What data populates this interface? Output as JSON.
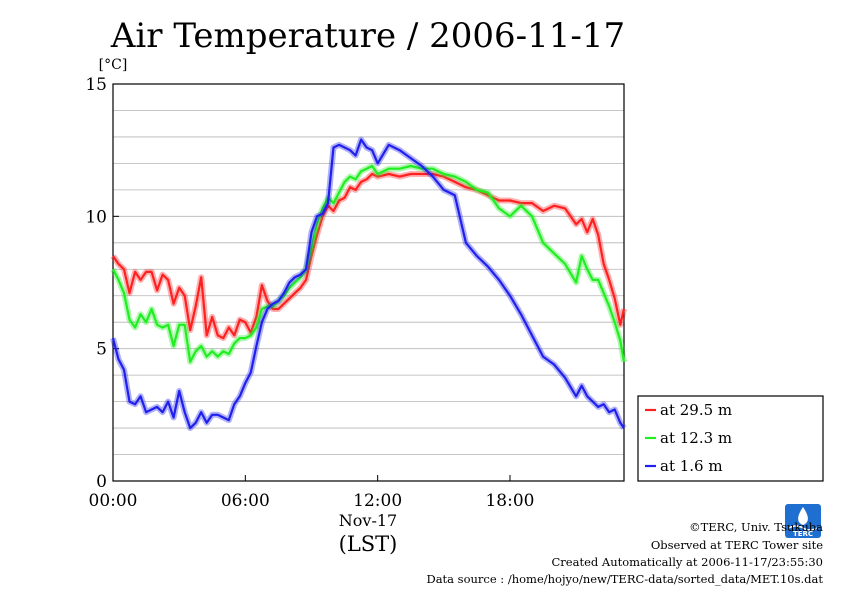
{
  "chart_data": {
    "type": "line",
    "title": "Air Temperature / 2006-11-17",
    "ylabel": "[°C]",
    "xlabel": "(LST)",
    "x_date_label": "Nov-17",
    "ylim": [
      0,
      15
    ],
    "xlim": [
      0,
      23.17
    ],
    "yticks": [
      0,
      5,
      10,
      15
    ],
    "yticks_labels": [
      "0",
      "5",
      "10",
      "15"
    ],
    "xticks": [
      0,
      6,
      12,
      18
    ],
    "xticks_labels": [
      "00:00",
      "06:00",
      "12:00",
      "18:00"
    ],
    "grid": true,
    "legend_position": "right",
    "series": [
      {
        "name": "at 29.5 m",
        "color": "#ff2020",
        "x": [
          0,
          0.25,
          0.5,
          0.75,
          1,
          1.25,
          1.5,
          1.75,
          2,
          2.25,
          2.5,
          2.75,
          3,
          3.25,
          3.5,
          3.75,
          4,
          4.25,
          4.5,
          4.75,
          5,
          5.25,
          5.5,
          5.75,
          6,
          6.25,
          6.5,
          6.75,
          7,
          7.25,
          7.5,
          7.75,
          8,
          8.25,
          8.5,
          8.75,
          9,
          9.25,
          9.5,
          9.75,
          10,
          10.25,
          10.5,
          10.75,
          11,
          11.25,
          11.5,
          11.75,
          12,
          12.5,
          13,
          13.5,
          14,
          14.5,
          15,
          15.5,
          16,
          16.5,
          17,
          17.5,
          18,
          18.5,
          19,
          19.5,
          20,
          20.5,
          21,
          21.25,
          21.5,
          21.75,
          22,
          22.25,
          22.5,
          22.75,
          23,
          23.17
        ],
        "values": [
          8.5,
          8.2,
          8.0,
          7.1,
          7.9,
          7.6,
          7.9,
          7.9,
          7.2,
          7.8,
          7.6,
          6.7,
          7.3,
          7.0,
          5.7,
          6.6,
          7.7,
          5.5,
          6.2,
          5.5,
          5.4,
          5.8,
          5.5,
          6.1,
          6.0,
          5.6,
          6.2,
          7.4,
          6.8,
          6.5,
          6.5,
          6.7,
          6.9,
          7.1,
          7.3,
          7.6,
          8.5,
          9.3,
          10.0,
          10.4,
          10.2,
          10.6,
          10.7,
          11.1,
          11.0,
          11.3,
          11.4,
          11.6,
          11.5,
          11.6,
          11.5,
          11.6,
          11.6,
          11.6,
          11.5,
          11.3,
          11.1,
          11.0,
          10.8,
          10.6,
          10.6,
          10.5,
          10.5,
          10.2,
          10.4,
          10.3,
          9.7,
          9.9,
          9.4,
          9.9,
          9.3,
          8.2,
          7.6,
          6.9,
          5.9,
          6.5
        ]
      },
      {
        "name": "at 12.3 m",
        "color": "#20ee20",
        "x": [
          0,
          0.25,
          0.5,
          0.75,
          1,
          1.25,
          1.5,
          1.75,
          2,
          2.25,
          2.5,
          2.75,
          3,
          3.25,
          3.5,
          3.75,
          4,
          4.25,
          4.5,
          4.75,
          5,
          5.25,
          5.5,
          5.75,
          6,
          6.25,
          6.5,
          6.75,
          7,
          7.25,
          7.5,
          7.75,
          8,
          8.25,
          8.5,
          8.75,
          9,
          9.25,
          9.5,
          9.75,
          10,
          10.25,
          10.5,
          10.75,
          11,
          11.25,
          11.5,
          11.75,
          12,
          12.5,
          13,
          13.5,
          14,
          14.5,
          15,
          15.5,
          16,
          16.5,
          17,
          17.5,
          18,
          18.5,
          19,
          19.5,
          20,
          20.5,
          21,
          21.25,
          21.5,
          21.75,
          22,
          22.25,
          22.5,
          22.75,
          23,
          23.17
        ],
        "values": [
          8.0,
          7.6,
          7.1,
          6.1,
          5.8,
          6.3,
          6.0,
          6.5,
          5.9,
          5.8,
          5.9,
          5.1,
          5.9,
          5.9,
          4.5,
          4.9,
          5.1,
          4.7,
          4.9,
          4.7,
          4.9,
          4.8,
          5.2,
          5.4,
          5.4,
          5.5,
          5.8,
          6.5,
          6.6,
          6.6,
          6.8,
          7.0,
          7.3,
          7.5,
          7.7,
          8.0,
          8.8,
          9.7,
          10.3,
          10.7,
          10.5,
          10.9,
          11.3,
          11.5,
          11.4,
          11.7,
          11.8,
          11.9,
          11.6,
          11.8,
          11.8,
          11.9,
          11.8,
          11.8,
          11.6,
          11.5,
          11.3,
          11.0,
          10.9,
          10.3,
          10.0,
          10.4,
          10.0,
          9.0,
          8.6,
          8.2,
          7.5,
          8.5,
          8.0,
          7.6,
          7.6,
          7.1,
          6.6,
          6.0,
          5.3,
          4.5
        ]
      },
      {
        "name": "at 1.6 m",
        "color": "#2020ee",
        "x": [
          0,
          0.25,
          0.5,
          0.75,
          1,
          1.25,
          1.5,
          1.75,
          2,
          2.25,
          2.5,
          2.75,
          3,
          3.25,
          3.5,
          3.75,
          4,
          4.25,
          4.5,
          4.75,
          5,
          5.25,
          5.5,
          5.75,
          6,
          6.25,
          6.5,
          6.75,
          7,
          7.25,
          7.5,
          7.75,
          8,
          8.25,
          8.5,
          8.75,
          9,
          9.25,
          9.5,
          9.75,
          10,
          10.25,
          10.5,
          10.75,
          11,
          11.25,
          11.5,
          11.75,
          12,
          12.5,
          13,
          13.5,
          14,
          14.5,
          15,
          15.5,
          16,
          16.5,
          17,
          17.5,
          18,
          18.5,
          19,
          19.5,
          20,
          20.5,
          21,
          21.25,
          21.5,
          21.75,
          22,
          22.25,
          22.5,
          22.75,
          23,
          23.17
        ],
        "values": [
          5.4,
          4.6,
          4.2,
          3.0,
          2.9,
          3.2,
          2.6,
          2.7,
          2.8,
          2.6,
          3.0,
          2.4,
          3.4,
          2.6,
          2.0,
          2.2,
          2.6,
          2.2,
          2.5,
          2.5,
          2.4,
          2.3,
          2.9,
          3.2,
          3.7,
          4.1,
          5.1,
          6.0,
          6.5,
          6.7,
          6.8,
          7.1,
          7.5,
          7.7,
          7.8,
          8.0,
          9.4,
          10.0,
          10.1,
          10.5,
          12.6,
          12.7,
          12.6,
          12.5,
          12.3,
          12.9,
          12.6,
          12.5,
          12.0,
          12.7,
          12.5,
          12.2,
          11.9,
          11.5,
          11.0,
          10.8,
          9.0,
          8.5,
          8.1,
          7.6,
          7.0,
          6.3,
          5.5,
          4.7,
          4.4,
          3.9,
          3.2,
          3.6,
          3.2,
          3.0,
          2.8,
          2.9,
          2.6,
          2.7,
          2.2,
          2.0
        ]
      }
    ]
  },
  "footer": {
    "copyright": "©TERC, Univ. Tsukuba",
    "observed": "Observed at TERC Tower site",
    "created": "Created Automatically at 2006-11-17/23:55:30",
    "source": "Data source : /home/hojyo/new/TERC-data/sorted_data/MET.10s.dat"
  },
  "logo": {
    "text": "TERC"
  }
}
